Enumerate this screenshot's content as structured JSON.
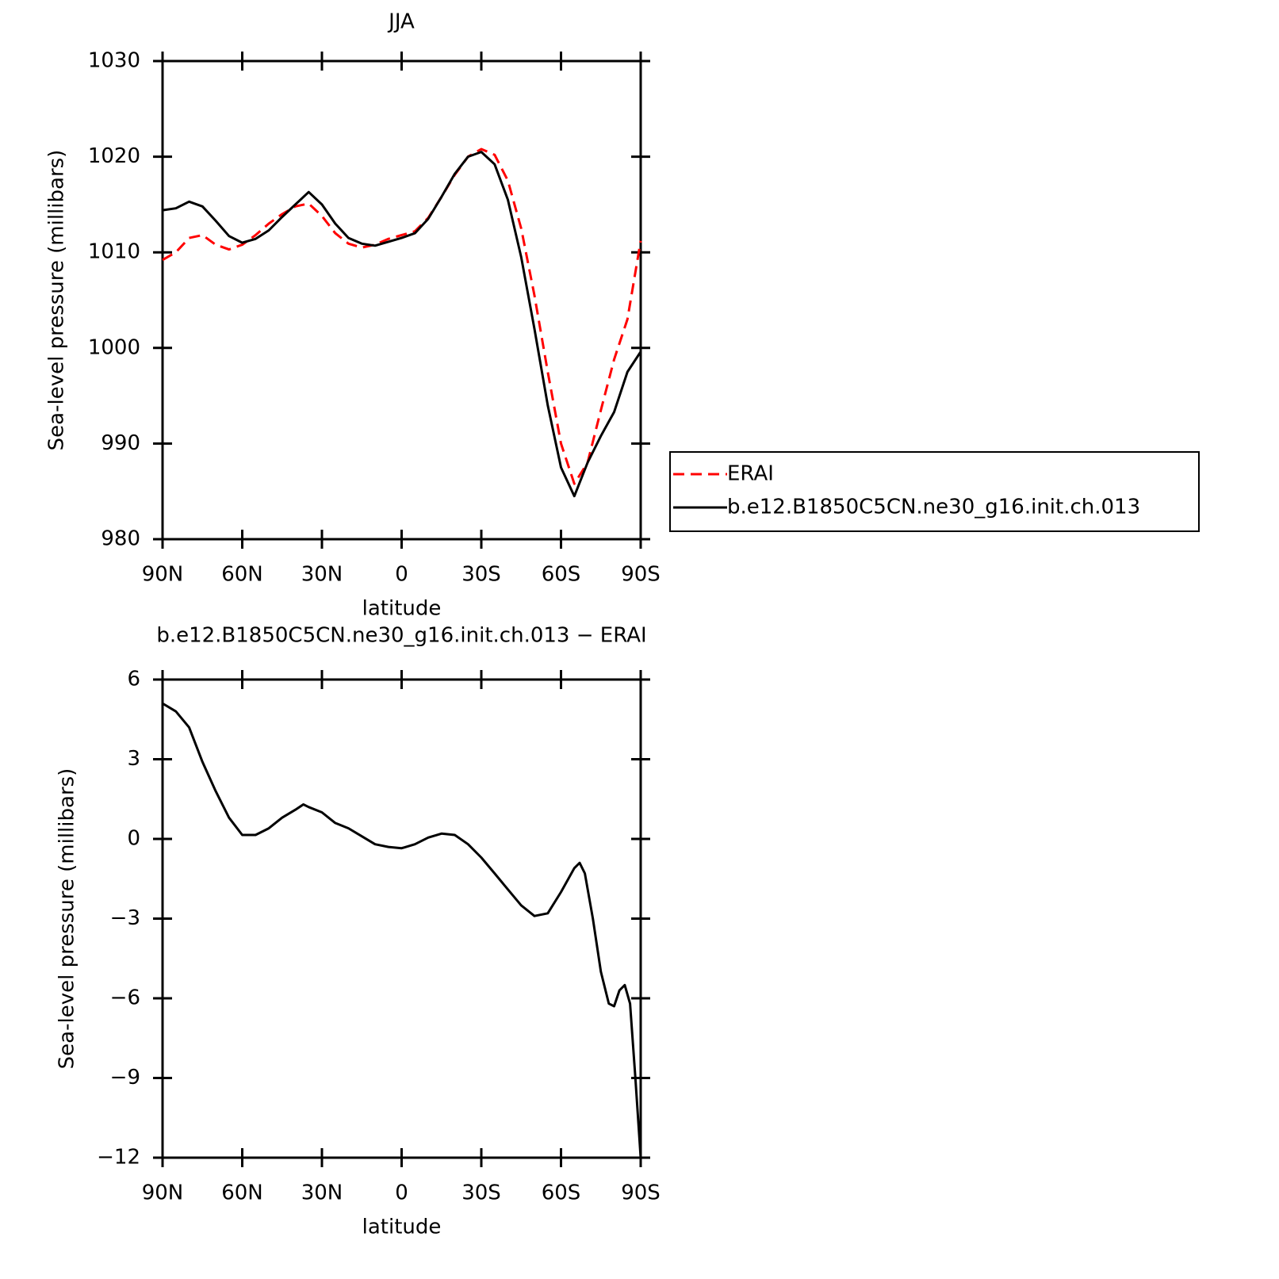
{
  "chart_data": [
    {
      "type": "line",
      "title": "JJA",
      "xlabel": "latitude",
      "ylabel": "Sea-level pressure (millibars)",
      "x": [
        90,
        85,
        80,
        75,
        70,
        65,
        60,
        55,
        50,
        45,
        40,
        35,
        30,
        25,
        20,
        15,
        10,
        5,
        0,
        -5,
        -10,
        -15,
        -20,
        -25,
        -30,
        -35,
        -40,
        -45,
        -50,
        -55,
        -60,
        -65,
        -70,
        -75,
        -80,
        -85,
        -90
      ],
      "series": [
        {
          "name": "ERAI",
          "color": "#ff0000",
          "dash": true,
          "values": [
            1009.2,
            1010.0,
            1011.5,
            1011.8,
            1010.8,
            1010.3,
            1010.8,
            1011.8,
            1013.0,
            1014.0,
            1014.8,
            1015.1,
            1013.8,
            1012.0,
            1010.9,
            1010.5,
            1010.8,
            1011.4,
            1011.8,
            1012.2,
            1013.6,
            1015.8,
            1018.1,
            1020.0,
            1020.8,
            1020.2,
            1017.5,
            1012.5,
            1005.5,
            997.5,
            990.0,
            985.8,
            988.0,
            993.5,
            998.8,
            1003.0,
            1011.2
          ]
        },
        {
          "name": "b.e12.B1850C5CN.ne30_g16.init.ch.013",
          "color": "#000000",
          "dash": false,
          "values": [
            1014.4,
            1014.6,
            1015.3,
            1014.8,
            1013.3,
            1011.7,
            1011.0,
            1011.4,
            1012.3,
            1013.7,
            1015.0,
            1016.3,
            1015.0,
            1013.0,
            1011.5,
            1010.9,
            1010.7,
            1011.1,
            1011.5,
            1012.0,
            1013.5,
            1015.8,
            1018.2,
            1020.0,
            1020.5,
            1019.2,
            1015.5,
            1009.5,
            1002.0,
            994.0,
            987.5,
            984.5,
            988.0,
            990.8,
            993.3,
            997.5,
            999.6
          ]
        }
      ],
      "xlim": [
        90,
        -90
      ],
      "xticks": [
        {
          "value": 90,
          "label": "90N"
        },
        {
          "value": 60,
          "label": "60N"
        },
        {
          "value": 30,
          "label": "30N"
        },
        0,
        {
          "value": -30,
          "label": "30S"
        },
        {
          "value": -60,
          "label": "60S"
        },
        {
          "value": -90,
          "label": "90S"
        }
      ],
      "ylim": [
        980,
        1030
      ],
      "yticks": [
        980,
        990,
        1000,
        1010,
        1020,
        1030
      ],
      "legend": "outside right"
    },
    {
      "type": "line",
      "title": "b.e12.B1850C5CN.ne30_g16.init.ch.013 − ERAI",
      "xlabel": "latitude",
      "ylabel": "Sea-level pressure (millibars)",
      "x": [
        90,
        85,
        80,
        75,
        70,
        65,
        60,
        55,
        50,
        45,
        40,
        37,
        35,
        30,
        25,
        20,
        15,
        10,
        5,
        0,
        -5,
        -10,
        -15,
        -20,
        -25,
        -30,
        -35,
        -40,
        -45,
        -50,
        -55,
        -60,
        -65,
        -67,
        -69,
        -72,
        -75,
        -78,
        -80,
        -82,
        -84,
        -86,
        -88,
        -90
      ],
      "series": [
        {
          "color": "#000000",
          "dash": false,
          "values": [
            5.1,
            4.8,
            4.2,
            2.9,
            1.8,
            0.8,
            0.15,
            0.15,
            0.4,
            0.8,
            1.1,
            1.3,
            1.2,
            1.0,
            0.6,
            0.4,
            0.1,
            -0.2,
            -0.3,
            -0.35,
            -0.2,
            0.05,
            0.2,
            0.15,
            -0.2,
            -0.7,
            -1.3,
            -1.9,
            -2.5,
            -2.9,
            -2.8,
            -2.0,
            -1.1,
            -0.9,
            -1.3,
            -3.0,
            -5.0,
            -6.2,
            -6.3,
            -5.7,
            -5.5,
            -6.2,
            -9.0,
            -12.0
          ]
        }
      ],
      "xlim": [
        90,
        -90
      ],
      "xticks": [
        {
          "value": 90,
          "label": "90N"
        },
        {
          "value": 60,
          "label": "60N"
        },
        {
          "value": 30,
          "label": "30N"
        },
        0,
        {
          "value": -30,
          "label": "30S"
        },
        {
          "value": -60,
          "label": "60S"
        },
        {
          "value": -90,
          "label": "90S"
        }
      ],
      "ylim": [
        -12,
        6
      ],
      "yticks": [
        {
          "value": -12,
          "label": "−12"
        },
        {
          "value": -9,
          "label": "−9"
        },
        {
          "value": -6,
          "label": "−6"
        },
        {
          "value": -3,
          "label": "−3"
        },
        0,
        3,
        6
      ]
    }
  ]
}
